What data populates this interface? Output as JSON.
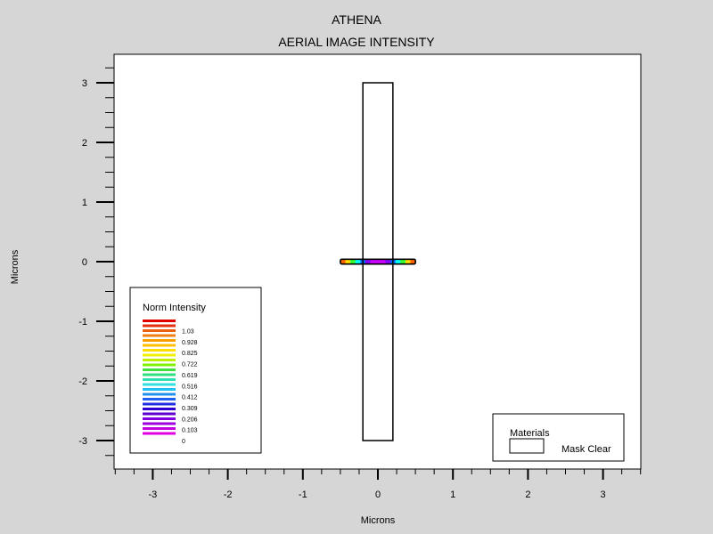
{
  "chart_data": {
    "type": "heatmap",
    "title": "ATHENA",
    "subtitle": "AERIAL IMAGE INTENSITY",
    "xlabel": "Microns",
    "ylabel": "Microns",
    "xlim": [
      -3.5,
      3.5
    ],
    "ylim": [
      -3.5,
      3.5
    ],
    "x_ticks": [
      "-3",
      "-2",
      "-1",
      "0",
      "1",
      "2",
      "3"
    ],
    "y_ticks": [
      "3",
      "2",
      "1",
      "0",
      "-1",
      "-2",
      "-3"
    ],
    "mask_opening": {
      "x": [
        -0.2,
        0.2
      ],
      "y": [
        -3,
        3
      ]
    },
    "intensity_strip": {
      "x": [
        -0.5,
        0.5
      ],
      "y": [
        -0.025,
        0.025
      ],
      "colors": [
        "#ff6600",
        "#ffdd00",
        "#33ff33",
        "#00ffff",
        "#0066ff",
        "#8800ff",
        "#cc00ff",
        "#cc00ff",
        "#cc00ff",
        "#8800ff",
        "#0066ff",
        "#00ffff",
        "#33ff33",
        "#ffdd00",
        "#ff6600"
      ]
    },
    "legend": {
      "title": "Norm Intensity",
      "placement": "bottom-left",
      "labels": [
        "1.03",
        "0.928",
        "0.825",
        "0.722",
        "0.619",
        "0.516",
        "0.412",
        "0.309",
        "0.206",
        "0.103",
        "0"
      ],
      "colors": [
        "#e00000",
        "#e53010",
        "#ea6010",
        "#f08010",
        "#f8a000",
        "#ffc000",
        "#ffe000",
        "#f0f000",
        "#c0f000",
        "#80f000",
        "#40e040",
        "#30e080",
        "#30e0b0",
        "#30e0e0",
        "#20c0f0",
        "#2090f0",
        "#2060f0",
        "#2030e0",
        "#3000d0",
        "#6000d0",
        "#8000e0",
        "#a000e0",
        "#c000e0",
        "#e000e0"
      ]
    },
    "materials_legend": {
      "title": "Materials",
      "placement": "bottom-right",
      "entries": [
        "Mask Clear"
      ]
    }
  }
}
